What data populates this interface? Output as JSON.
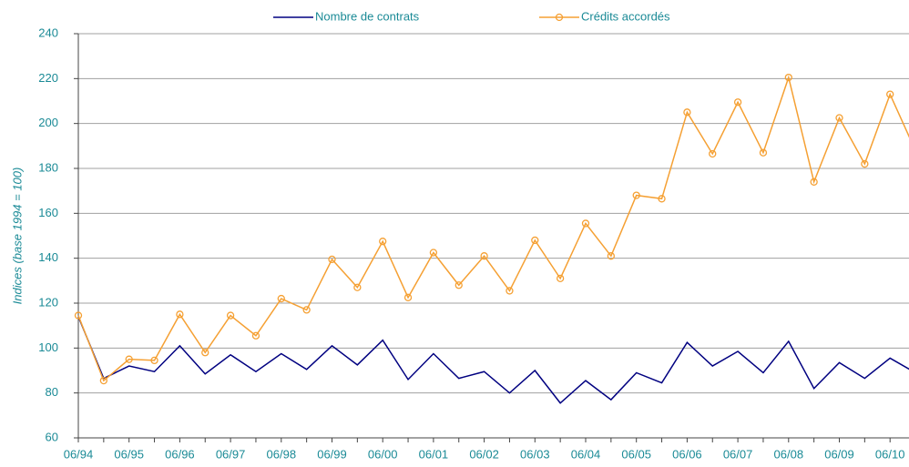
{
  "chart_data": {
    "type": "line",
    "y_label": "Indices (base 1994 = 100)",
    "categories": [
      "06/94",
      null,
      "06/95",
      null,
      "06/96",
      null,
      "06/97",
      null,
      "06/98",
      null,
      "06/99",
      null,
      "06/00",
      null,
      "06/01",
      null,
      "06/02",
      null,
      "06/03",
      null,
      "06/04",
      null,
      "06/05",
      null,
      "06/06",
      null,
      "06/07",
      null,
      "06/08",
      null,
      "06/09",
      null,
      "06/10",
      null
    ],
    "series": [
      {
        "name": "Nombre de contrats",
        "color": "#000080",
        "markers": false,
        "values": [
          114,
          86.5,
          92,
          89.5,
          101,
          88.5,
          97,
          89.5,
          97.5,
          90.5,
          101,
          92.5,
          103.5,
          86,
          97.5,
          86.5,
          89.5,
          80,
          90,
          75.5,
          85.5,
          77,
          89,
          84.5,
          102.5,
          92,
          98.5,
          89,
          103,
          82,
          93.5,
          86.5,
          95.5,
          89
        ]
      },
      {
        "name": "Crédits accordés",
        "color": "#f5a033",
        "markers": true,
        "values": [
          114.5,
          85.5,
          95,
          94.5,
          115,
          98,
          114.5,
          105.5,
          122,
          117,
          139.5,
          127,
          147.5,
          122.5,
          142.5,
          128,
          141,
          125.5,
          148,
          131,
          155.5,
          141,
          168,
          166.5,
          205,
          186.5,
          209.5,
          187,
          220.5,
          174,
          202.5,
          182,
          213,
          188
        ]
      }
    ],
    "ylim": [
      60,
      240
    ],
    "yticks": [
      60,
      80,
      100,
      120,
      140,
      160,
      180,
      200,
      220,
      240
    ],
    "grid": true,
    "legend": "top"
  }
}
